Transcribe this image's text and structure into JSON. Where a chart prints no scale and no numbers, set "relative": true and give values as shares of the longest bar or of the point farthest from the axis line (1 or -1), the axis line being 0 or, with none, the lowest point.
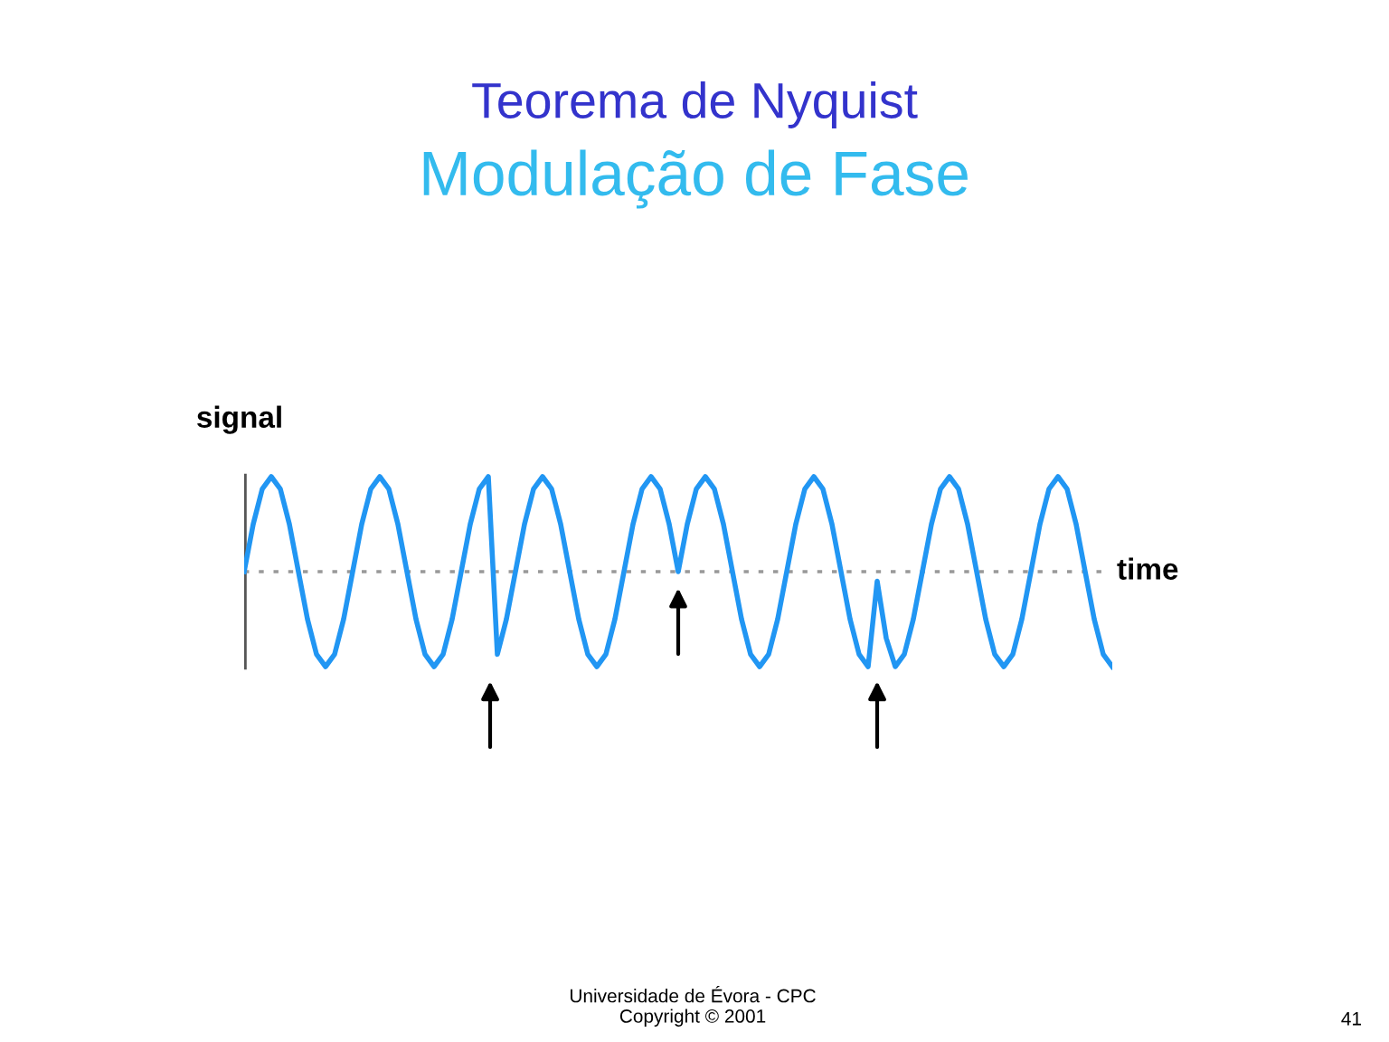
{
  "chart_data": {
    "type": "line",
    "title": "Teorema de Nyquist",
    "subtitle": "Modulação de Fase",
    "xlabel": "time",
    "ylabel": "signal",
    "relative": true,
    "legend": false,
    "grid": false,
    "marker": "none",
    "line_style": "solid",
    "categories": [
      null,
      null,
      null,
      null,
      null,
      null,
      null,
      null,
      null,
      null,
      null,
      null,
      null,
      null,
      null,
      null,
      null,
      null,
      null,
      null,
      null,
      null,
      null,
      null,
      null,
      null,
      null,
      null,
      null,
      null,
      null,
      null,
      null,
      null,
      null,
      null,
      null,
      null,
      null,
      null,
      null,
      null,
      null,
      null,
      null,
      null,
      null,
      null,
      null,
      null,
      null,
      null,
      null,
      null,
      null,
      null,
      null,
      null,
      null,
      null,
      null,
      null,
      null,
      null,
      null,
      null,
      null,
      null,
      null,
      null,
      null,
      null,
      null,
      null,
      null,
      null,
      null,
      null,
      null,
      null,
      null,
      null,
      null,
      null,
      null,
      null,
      null,
      null,
      null,
      null,
      null,
      null,
      null,
      null,
      null,
      null,
      null
    ],
    "series": [
      {
        "color": "#2196f3",
        "values": [
          0,
          0.5,
          0.87,
          1,
          0.87,
          0.5,
          0,
          -0.5,
          -0.87,
          -1,
          -0.87,
          -0.5,
          0,
          0.5,
          0.87,
          1,
          0.87,
          0.5,
          0,
          -0.5,
          -0.87,
          -1,
          -0.87,
          -0.5,
          0,
          0.5,
          0.87,
          1,
          -0.87,
          -0.5,
          0,
          0.5,
          0.87,
          1,
          0.87,
          0.5,
          0,
          -0.5,
          -0.87,
          -1,
          -0.87,
          -0.5,
          0,
          0.5,
          0.87,
          1,
          0.87,
          0.5,
          0,
          0.5,
          0.87,
          1,
          0.87,
          0.5,
          0,
          -0.5,
          -0.87,
          -1,
          -0.87,
          -0.5,
          0,
          0.5,
          0.87,
          1,
          0.87,
          0.5,
          0,
          -0.5,
          -0.87,
          -1,
          -0.1,
          -0.7,
          -1,
          -0.87,
          -0.5,
          0,
          0.5,
          0.87,
          1,
          0.87,
          0.5,
          0,
          -0.5,
          -0.87,
          -1,
          -0.87,
          -0.5,
          0,
          0.5,
          0.87,
          1,
          0.87,
          0.5,
          0,
          -0.5,
          -0.87,
          -1
        ]
      }
    ],
    "ref_lines": [
      {
        "axis": "y",
        "value": 0,
        "color": "#999999",
        "line_style": "dotted"
      }
    ],
    "annotations": [
      "Universidade de Évora - CPC\nCopyright © 2001",
      "41"
    ]
  }
}
